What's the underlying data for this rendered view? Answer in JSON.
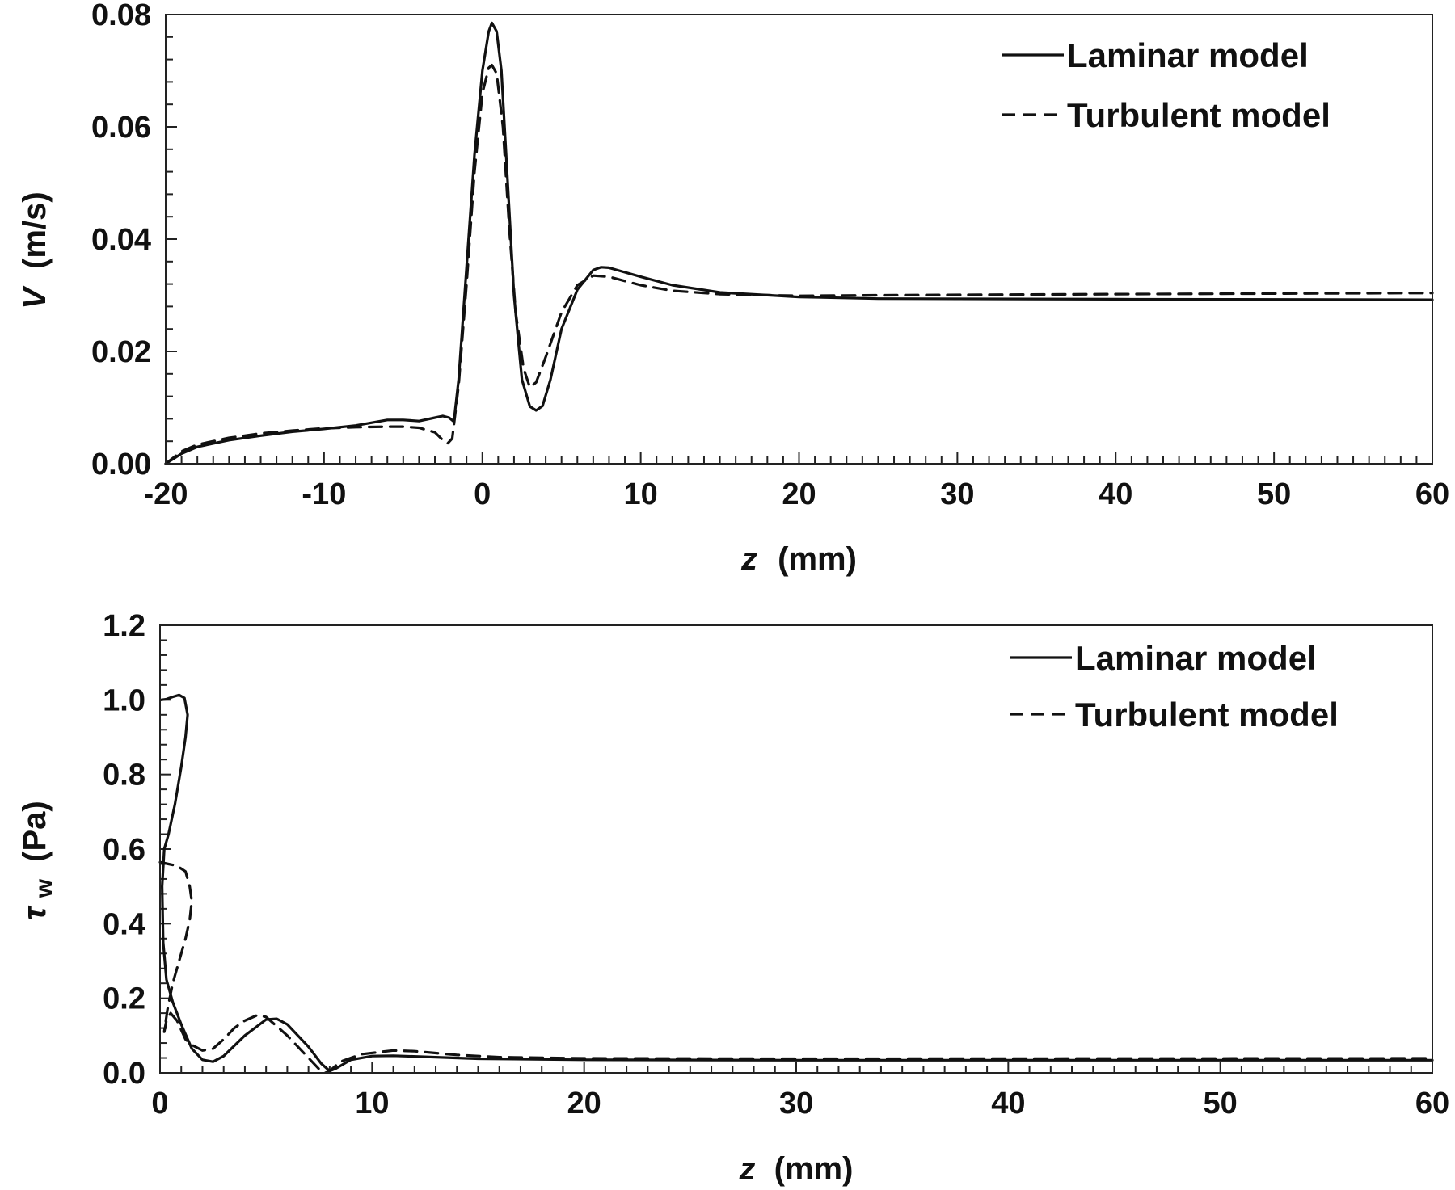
{
  "chart_data": [
    {
      "type": "line",
      "title": "",
      "xlabel_italic": "z",
      "xlabel_rest": "(mm)",
      "ylabel_italic": "V",
      "ylabel_rest": "(m/s)",
      "xlim": [
        -20,
        60
      ],
      "ylim": [
        0,
        0.08
      ],
      "xticks": [
        -20,
        -10,
        0,
        10,
        20,
        30,
        40,
        50,
        60
      ],
      "xtick_labels": [
        "-20",
        "-10",
        "0",
        "10",
        "20",
        "30",
        "40",
        "50",
        "60"
      ],
      "yticks": [
        0,
        0.02,
        0.04,
        0.06,
        0.08
      ],
      "ytick_labels": [
        "0.00",
        "0.02",
        "0.04",
        "0.06",
        "0.08"
      ],
      "x_minor_step": 1,
      "y_minor_step": 0.004,
      "grid": false,
      "legend_position": "top-right",
      "series": [
        {
          "name": "Laminar model",
          "style": "solid",
          "points": [
            [
              -20,
              0
            ],
            [
              -19,
              0.0018
            ],
            [
              -18,
              0.003
            ],
            [
              -16,
              0.0042
            ],
            [
              -14,
              0.005
            ],
            [
              -12,
              0.0057
            ],
            [
              -10,
              0.0062
            ],
            [
              -8,
              0.0068
            ],
            [
              -6,
              0.0078
            ],
            [
              -5,
              0.0078
            ],
            [
              -4,
              0.0076
            ],
            [
              -3,
              0.0082
            ],
            [
              -2.5,
              0.0085
            ],
            [
              -2.1,
              0.0082
            ],
            [
              -1.8,
              0.0075
            ],
            [
              -1.5,
              0.015
            ],
            [
              -1,
              0.035
            ],
            [
              -0.5,
              0.055
            ],
            [
              0,
              0.07
            ],
            [
              0.4,
              0.077
            ],
            [
              0.6,
              0.0785
            ],
            [
              0.9,
              0.077
            ],
            [
              1.2,
              0.07
            ],
            [
              1.6,
              0.05
            ],
            [
              2,
              0.03
            ],
            [
              2.5,
              0.015
            ],
            [
              3,
              0.0102
            ],
            [
              3.4,
              0.0095
            ],
            [
              3.8,
              0.0103
            ],
            [
              4.3,
              0.015
            ],
            [
              5,
              0.024
            ],
            [
              6,
              0.031
            ],
            [
              7,
              0.0345
            ],
            [
              7.5,
              0.035
            ],
            [
              8,
              0.0349
            ],
            [
              10,
              0.0333
            ],
            [
              12,
              0.0318
            ],
            [
              15,
              0.0305
            ],
            [
              20,
              0.0297
            ],
            [
              25,
              0.0294
            ],
            [
              40,
              0.0293
            ],
            [
              60,
              0.0292
            ]
          ]
        },
        {
          "name": "Turbulent model",
          "style": "dashed",
          "points": [
            [
              -20,
              0
            ],
            [
              -19,
              0.0022
            ],
            [
              -18,
              0.0034
            ],
            [
              -16,
              0.0046
            ],
            [
              -14,
              0.0054
            ],
            [
              -12,
              0.0059
            ],
            [
              -10,
              0.0063
            ],
            [
              -8,
              0.0065
            ],
            [
              -6,
              0.0066
            ],
            [
              -5,
              0.0066
            ],
            [
              -4,
              0.0064
            ],
            [
              -3,
              0.0056
            ],
            [
              -2.5,
              0.0042
            ],
            [
              -2.2,
              0.0036
            ],
            [
              -1.9,
              0.0045
            ],
            [
              -1.5,
              0.014
            ],
            [
              -1,
              0.032
            ],
            [
              -0.5,
              0.052
            ],
            [
              0,
              0.066
            ],
            [
              0.4,
              0.0705
            ],
            [
              0.6,
              0.071
            ],
            [
              0.9,
              0.0695
            ],
            [
              1.3,
              0.06
            ],
            [
              1.7,
              0.042
            ],
            [
              2.1,
              0.027
            ],
            [
              2.6,
              0.017
            ],
            [
              3,
              0.0136
            ],
            [
              3.4,
              0.0145
            ],
            [
              4,
              0.019
            ],
            [
              5,
              0.027
            ],
            [
              6,
              0.0318
            ],
            [
              7,
              0.0335
            ],
            [
              8,
              0.0333
            ],
            [
              10,
              0.0318
            ],
            [
              12,
              0.0308
            ],
            [
              15,
              0.0302
            ],
            [
              20,
              0.0299
            ],
            [
              25,
              0.03
            ],
            [
              40,
              0.0302
            ],
            [
              60,
              0.0304
            ]
          ]
        }
      ]
    },
    {
      "type": "line",
      "title": "",
      "xlabel_italic": "z",
      "xlabel_rest": "(mm)",
      "ylabel_main": "τ",
      "ylabel_sub": "w",
      "ylabel_rest": "(Pa)",
      "xlim": [
        0,
        60
      ],
      "ylim": [
        0,
        1.2
      ],
      "xticks": [
        0,
        10,
        20,
        30,
        40,
        50,
        60
      ],
      "xtick_labels": [
        "0",
        "10",
        "20",
        "30",
        "40",
        "50",
        "60"
      ],
      "yticks": [
        0,
        0.2,
        0.4,
        0.6,
        0.8,
        1.0,
        1.2
      ],
      "ytick_labels": [
        "0.0",
        "0.2",
        "0.4",
        "0.6",
        "0.8",
        "1.0",
        "1.2"
      ],
      "x_minor_step": 1,
      "y_minor_step": 0.04,
      "grid": false,
      "legend_position": "top-right",
      "series": [
        {
          "name": "Laminar model",
          "style": "solid",
          "points": [
            [
              0.05,
              1.0
            ],
            [
              0.3,
              1.002
            ],
            [
              0.6,
              1.008
            ],
            [
              0.9,
              1.013
            ],
            [
              1.15,
              1.005
            ],
            [
              1.3,
              0.96
            ],
            [
              1.2,
              0.9
            ],
            [
              1.0,
              0.82
            ],
            [
              0.7,
              0.72
            ],
            [
              0.4,
              0.64
            ],
            [
              0.2,
              0.6
            ],
            [
              0.1,
              0.5
            ],
            [
              0.15,
              0.35
            ],
            [
              0.3,
              0.25
            ],
            [
              0.6,
              0.19
            ],
            [
              1,
              0.13
            ],
            [
              1.5,
              0.065
            ],
            [
              2,
              0.035
            ],
            [
              2.5,
              0.03
            ],
            [
              3,
              0.045
            ],
            [
              4,
              0.1
            ],
            [
              5,
              0.143
            ],
            [
              5.5,
              0.145
            ],
            [
              6,
              0.13
            ],
            [
              7,
              0.07
            ],
            [
              7.6,
              0.025
            ],
            [
              8,
              0.005
            ],
            [
              8.3,
              0.012
            ],
            [
              9,
              0.035
            ],
            [
              10,
              0.045
            ],
            [
              11,
              0.046
            ],
            [
              13,
              0.042
            ],
            [
              15,
              0.038
            ],
            [
              20,
              0.035
            ],
            [
              30,
              0.034
            ],
            [
              60,
              0.034
            ]
          ]
        },
        {
          "name": "Turbulent model",
          "style": "dashed",
          "points": [
            [
              0,
              0.565
            ],
            [
              0.4,
              0.56
            ],
            [
              0.8,
              0.555
            ],
            [
              1.2,
              0.54
            ],
            [
              1.4,
              0.5
            ],
            [
              1.5,
              0.46
            ],
            [
              1.4,
              0.41
            ],
            [
              1.2,
              0.36
            ],
            [
              0.9,
              0.3
            ],
            [
              0.6,
              0.24
            ],
            [
              0.35,
              0.17
            ],
            [
              0.2,
              0.11
            ],
            [
              0.3,
              0.14
            ],
            [
              0.5,
              0.16
            ],
            [
              0.8,
              0.14
            ],
            [
              1.2,
              0.09
            ],
            [
              1.5,
              0.075
            ],
            [
              2,
              0.06
            ],
            [
              2.5,
              0.065
            ],
            [
              3,
              0.09
            ],
            [
              3.5,
              0.12
            ],
            [
              4,
              0.14
            ],
            [
              4.6,
              0.155
            ],
            [
              5,
              0.15
            ],
            [
              6,
              0.1
            ],
            [
              7,
              0.04
            ],
            [
              7.5,
              0.01
            ],
            [
              7.8,
              0.0
            ],
            [
              8,
              0.005
            ],
            [
              8.5,
              0.03
            ],
            [
              9.5,
              0.05
            ],
            [
              11,
              0.06
            ],
            [
              12,
              0.058
            ],
            [
              14,
              0.048
            ],
            [
              16,
              0.042
            ],
            [
              20,
              0.039
            ],
            [
              30,
              0.038
            ],
            [
              60,
              0.039
            ]
          ]
        }
      ]
    }
  ]
}
